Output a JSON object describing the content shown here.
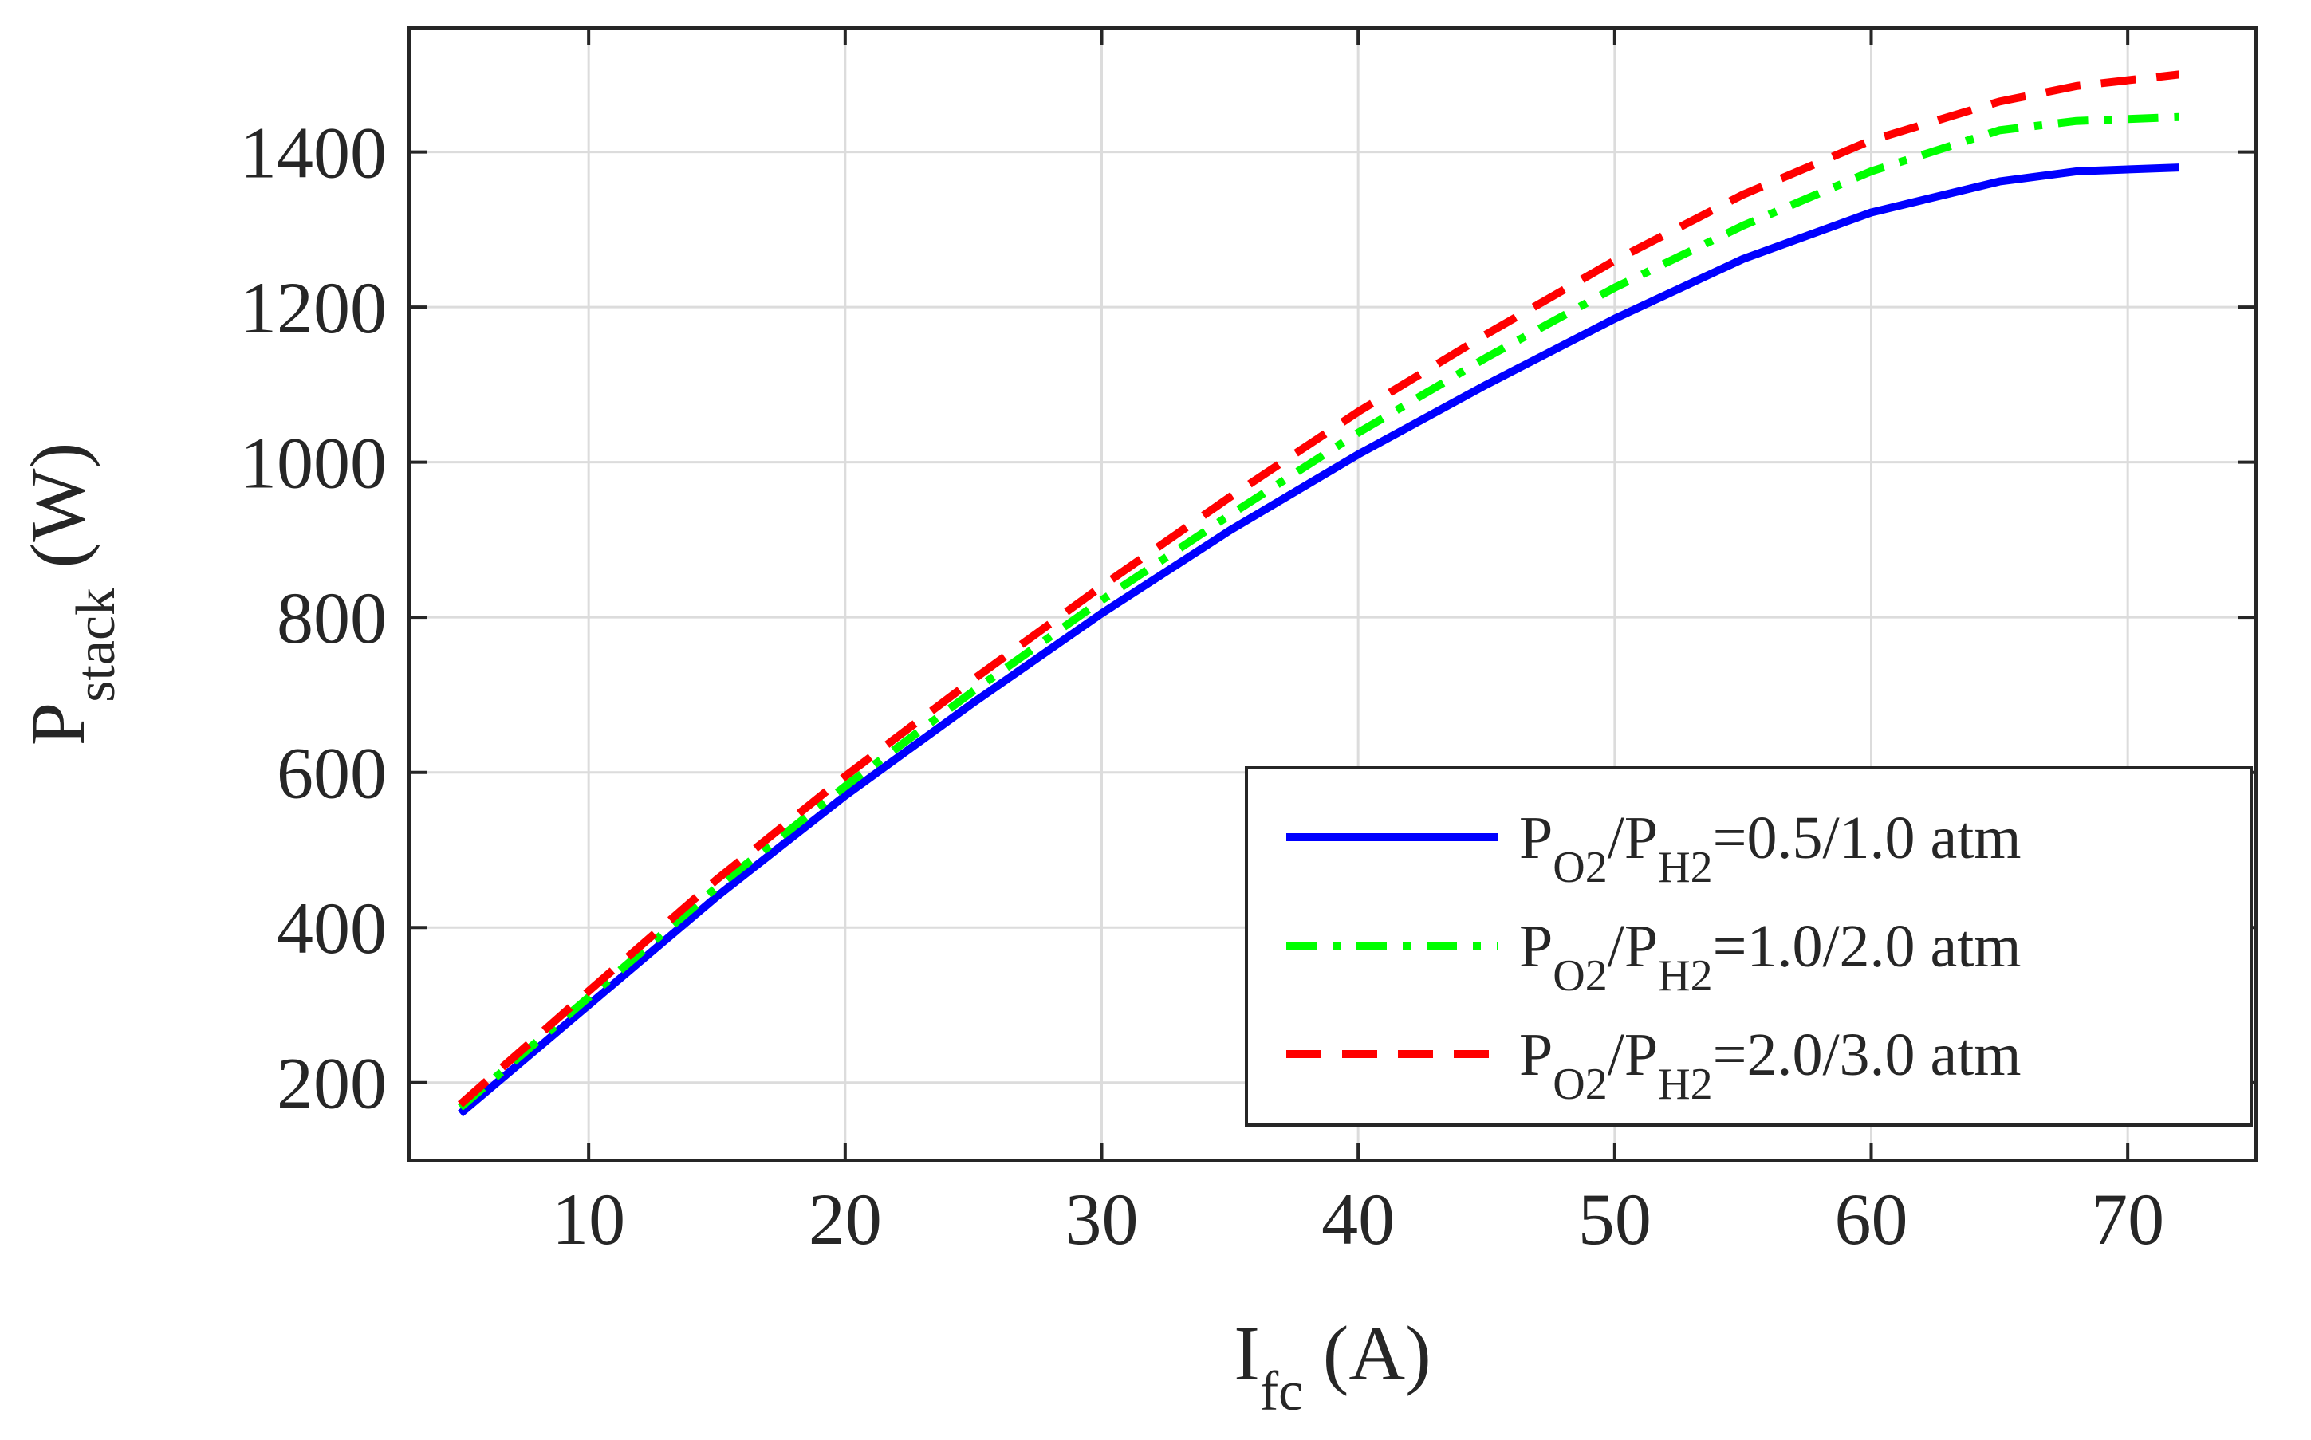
{
  "chart_data": {
    "type": "line",
    "title": "",
    "xlabel": {
      "main": "I",
      "sub": "fc",
      "unit": " (A)"
    },
    "ylabel": {
      "main": "P",
      "sub": "stack",
      "unit": " (W)"
    },
    "xlim": [
      3,
      75
    ],
    "ylim": [
      100,
      1560
    ],
    "xticks": [
      10,
      20,
      30,
      40,
      50,
      60,
      70
    ],
    "yticks": [
      200,
      400,
      600,
      800,
      1000,
      1200,
      1400
    ],
    "grid": true,
    "legend_position": "bottom-right",
    "series": [
      {
        "name": "P_O2/P_H2=0.5/1.0 atm",
        "legend": {
          "p1": "P",
          "s1": "O2",
          "mid": "/P",
          "s2": "H2",
          "tail": "=0.5/1.0 atm"
        },
        "color": "#0000ff",
        "style": "solid",
        "x": [
          5,
          10,
          15,
          20,
          25,
          30,
          35,
          40,
          45,
          50,
          55,
          60,
          65,
          68,
          72
        ],
        "y": [
          160,
          300,
          440,
          570,
          690,
          805,
          912,
          1010,
          1100,
          1185,
          1262,
          1322,
          1362,
          1375,
          1380
        ]
      },
      {
        "name": "P_O2/P_H2=1.0/2.0 atm",
        "legend": {
          "p1": "P",
          "s1": "O2",
          "mid": "/P",
          "s2": "H2",
          "tail": "=1.0/2.0 atm"
        },
        "color": "#00ff00",
        "style": "dashdot",
        "x": [
          5,
          10,
          15,
          20,
          25,
          30,
          35,
          40,
          45,
          50,
          55,
          60,
          65,
          68,
          72
        ],
        "y": [
          168,
          310,
          452,
          582,
          705,
          822,
          932,
          1038,
          1135,
          1225,
          1305,
          1375,
          1428,
          1440,
          1445
        ]
      },
      {
        "name": "P_O2/P_H2=2.0/3.0 atm",
        "legend": {
          "p1": "P",
          "s1": "O2",
          "mid": "/P",
          "s2": "H2",
          "tail": "=2.0/3.0 atm"
        },
        "color": "#ff0000",
        "style": "dashed",
        "x": [
          5,
          10,
          15,
          20,
          25,
          30,
          35,
          40,
          45,
          50,
          55,
          60,
          65,
          68,
          72
        ],
        "y": [
          172,
          318,
          462,
          595,
          720,
          840,
          955,
          1065,
          1165,
          1260,
          1345,
          1415,
          1465,
          1485,
          1500
        ]
      }
    ]
  }
}
